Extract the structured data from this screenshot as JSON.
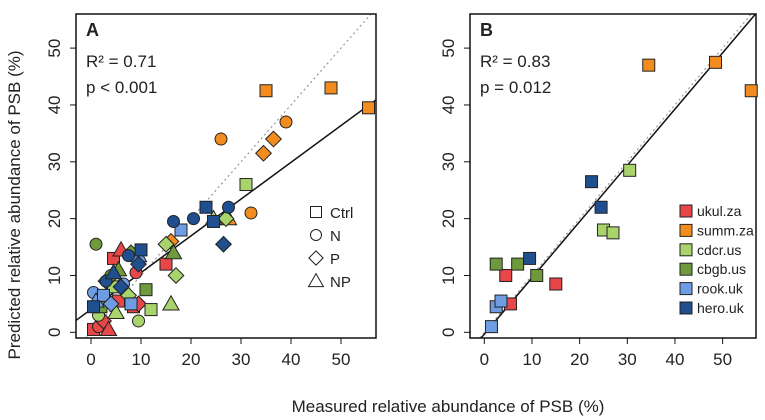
{
  "figure": {
    "xlabel": "Measured relative abundance of PSB (%)",
    "ylabel": "Predicted relative abundance of PSB (%)"
  },
  "colors": {
    "ukul.za": "#e8474a",
    "summ.za": "#f28c1e",
    "cdcr.us": "#a9d46b",
    "cbgb.us": "#6f9a3c",
    "rook.uk": "#6e9de3",
    "hero.uk": "#1f4f8f"
  },
  "chart_data": [
    {
      "type": "scatter",
      "panel": "A",
      "label": "A",
      "r2": "R² = 0.71",
      "p": "p < 0.001",
      "xlim": [
        -3,
        57
      ],
      "ylim": [
        -1,
        56
      ],
      "xticks": [
        0,
        10,
        20,
        30,
        40,
        50
      ],
      "yticks": [
        0,
        10,
        20,
        30,
        40,
        50
      ],
      "xtick_labels": [
        "0",
        "10",
        "20",
        "30",
        "40",
        "50"
      ],
      "ytick_labels": [
        "0",
        "10",
        "20",
        "30",
        "40",
        "50"
      ],
      "fit_line": [
        [
          -3,
          2.1
        ],
        [
          57,
          40.9
        ]
      ],
      "identity_line": "dotted",
      "shape_legend": {
        "placement": "right-middle",
        "items": [
          {
            "shape": "square",
            "label": "Ctrl"
          },
          {
            "shape": "circle",
            "label": "N"
          },
          {
            "shape": "diamond",
            "label": "P"
          },
          {
            "shape": "triangle",
            "label": "NP"
          }
        ]
      },
      "points": [
        {
          "x": 0.5,
          "y": 0.5,
          "shape": "square",
          "site": "ukul.za"
        },
        {
          "x": 1.5,
          "y": 1.0,
          "shape": "circle",
          "site": "ukul.za"
        },
        {
          "x": 2.5,
          "y": 2.0,
          "shape": "diamond",
          "site": "ukul.za"
        },
        {
          "x": 3.5,
          "y": 0.5,
          "shape": "triangle",
          "site": "ukul.za"
        },
        {
          "x": 4.5,
          "y": 13.0,
          "shape": "square",
          "site": "ukul.za"
        },
        {
          "x": 5.5,
          "y": 5.5,
          "shape": "square",
          "site": "ukul.za"
        },
        {
          "x": 6.0,
          "y": 14.5,
          "shape": "triangle",
          "site": "ukul.za"
        },
        {
          "x": 8.5,
          "y": 4.5,
          "shape": "square",
          "site": "ukul.za"
        },
        {
          "x": 9.0,
          "y": 10.5,
          "shape": "circle",
          "site": "ukul.za"
        },
        {
          "x": 9.5,
          "y": 5.0,
          "shape": "diamond",
          "site": "ukul.za"
        },
        {
          "x": 15.0,
          "y": 12.0,
          "shape": "square",
          "site": "ukul.za"
        },
        {
          "x": 26.0,
          "y": 34.0,
          "shape": "circle",
          "site": "summ.za"
        },
        {
          "x": 27.5,
          "y": 20.0,
          "shape": "triangle",
          "site": "summ.za"
        },
        {
          "x": 32.0,
          "y": 21.0,
          "shape": "circle",
          "site": "summ.za"
        },
        {
          "x": 34.5,
          "y": 31.5,
          "shape": "diamond",
          "site": "summ.za"
        },
        {
          "x": 35.0,
          "y": 42.5,
          "shape": "square",
          "site": "summ.za"
        },
        {
          "x": 36.5,
          "y": 34.0,
          "shape": "diamond",
          "site": "summ.za"
        },
        {
          "x": 39.0,
          "y": 37.0,
          "shape": "circle",
          "site": "summ.za"
        },
        {
          "x": 48.0,
          "y": 43.0,
          "shape": "square",
          "site": "summ.za"
        },
        {
          "x": 55.5,
          "y": 39.5,
          "shape": "square",
          "site": "summ.za"
        },
        {
          "x": 16.0,
          "y": 16.0,
          "shape": "diamond",
          "site": "summ.za"
        },
        {
          "x": 1.5,
          "y": 3.0,
          "shape": "circle",
          "site": "cdcr.us"
        },
        {
          "x": 3.0,
          "y": 6.0,
          "shape": "triangle",
          "site": "cdcr.us"
        },
        {
          "x": 4.5,
          "y": 8.0,
          "shape": "square",
          "site": "cdcr.us"
        },
        {
          "x": 5.0,
          "y": 3.5,
          "shape": "triangle",
          "site": "cdcr.us"
        },
        {
          "x": 7.5,
          "y": 6.5,
          "shape": "diamond",
          "site": "cdcr.us"
        },
        {
          "x": 9.5,
          "y": 2.0,
          "shape": "circle",
          "site": "cdcr.us"
        },
        {
          "x": 12.0,
          "y": 4.0,
          "shape": "square",
          "site": "cdcr.us"
        },
        {
          "x": 15.0,
          "y": 15.5,
          "shape": "diamond",
          "site": "cdcr.us"
        },
        {
          "x": 16.0,
          "y": 5.0,
          "shape": "triangle",
          "site": "cdcr.us"
        },
        {
          "x": 17.0,
          "y": 10.0,
          "shape": "diamond",
          "site": "cdcr.us"
        },
        {
          "x": 24.5,
          "y": 20.0,
          "shape": "triangle",
          "site": "cdcr.us"
        },
        {
          "x": 27.0,
          "y": 20.0,
          "shape": "diamond",
          "site": "cdcr.us"
        },
        {
          "x": 31.0,
          "y": 26.0,
          "shape": "square",
          "site": "cdcr.us"
        },
        {
          "x": 1.0,
          "y": 15.5,
          "shape": "circle",
          "site": "cbgb.us"
        },
        {
          "x": 2.0,
          "y": 4.5,
          "shape": "square",
          "site": "cbgb.us"
        },
        {
          "x": 3.0,
          "y": 9.0,
          "shape": "diamond",
          "site": "cbgb.us"
        },
        {
          "x": 4.0,
          "y": 10.0,
          "shape": "circle",
          "site": "cbgb.us"
        },
        {
          "x": 5.5,
          "y": 11.0,
          "shape": "triangle",
          "site": "cbgb.us"
        },
        {
          "x": 8.0,
          "y": 14.0,
          "shape": "diamond",
          "site": "cbgb.us"
        },
        {
          "x": 11.0,
          "y": 7.5,
          "shape": "square",
          "site": "cbgb.us"
        },
        {
          "x": 16.5,
          "y": 14.0,
          "shape": "triangle",
          "site": "cbgb.us"
        },
        {
          "x": 0.5,
          "y": 7.0,
          "shape": "circle",
          "site": "rook.uk"
        },
        {
          "x": 1.0,
          "y": 5.5,
          "shape": "triangle",
          "site": "rook.uk"
        },
        {
          "x": 2.5,
          "y": 6.5,
          "shape": "square",
          "site": "rook.uk"
        },
        {
          "x": 4.0,
          "y": 5.0,
          "shape": "diamond",
          "site": "rook.uk"
        },
        {
          "x": 6.5,
          "y": 8.5,
          "shape": "circle",
          "site": "rook.uk"
        },
        {
          "x": 8.0,
          "y": 5.0,
          "shape": "square",
          "site": "rook.uk"
        },
        {
          "x": 9.5,
          "y": 13.5,
          "shape": "triangle",
          "site": "rook.uk"
        },
        {
          "x": 18.0,
          "y": 18.0,
          "shape": "square",
          "site": "rook.uk"
        },
        {
          "x": 0.5,
          "y": 4.5,
          "shape": "square",
          "site": "hero.uk"
        },
        {
          "x": 3.0,
          "y": 9.0,
          "shape": "circle",
          "site": "hero.uk"
        },
        {
          "x": 4.5,
          "y": 10.5,
          "shape": "triangle",
          "site": "hero.uk"
        },
        {
          "x": 6.0,
          "y": 8.0,
          "shape": "diamond",
          "site": "hero.uk"
        },
        {
          "x": 7.5,
          "y": 13.5,
          "shape": "circle",
          "site": "hero.uk"
        },
        {
          "x": 9.5,
          "y": 12.0,
          "shape": "diamond",
          "site": "hero.uk"
        },
        {
          "x": 10.0,
          "y": 14.5,
          "shape": "square",
          "site": "hero.uk"
        },
        {
          "x": 16.5,
          "y": 19.5,
          "shape": "circle",
          "site": "hero.uk"
        },
        {
          "x": 20.5,
          "y": 20.0,
          "shape": "circle",
          "site": "hero.uk"
        },
        {
          "x": 23.0,
          "y": 22.0,
          "shape": "square",
          "site": "hero.uk"
        },
        {
          "x": 24.5,
          "y": 19.5,
          "shape": "square",
          "site": "hero.uk"
        },
        {
          "x": 26.5,
          "y": 15.5,
          "shape": "diamond",
          "site": "hero.uk"
        },
        {
          "x": 27.5,
          "y": 22.0,
          "shape": "circle",
          "site": "hero.uk"
        }
      ]
    },
    {
      "type": "scatter",
      "panel": "B",
      "label": "B",
      "r2": "R² = 0.83",
      "p": "p = 0.012",
      "xlim": [
        -3,
        57
      ],
      "ylim": [
        -1,
        56
      ],
      "xticks": [
        0,
        10,
        20,
        30,
        40,
        50
      ],
      "yticks": [
        0,
        10,
        20,
        30,
        40,
        50
      ],
      "xtick_labels": [
        "0",
        "10",
        "20",
        "30",
        "40",
        "50"
      ],
      "ytick_labels": [
        "0",
        "10",
        "20",
        "30",
        "40",
        "50"
      ],
      "fit_line": [
        [
          -3,
          -3.3
        ],
        [
          57,
          56.1
        ]
      ],
      "identity_line": "dotted",
      "site_legend": {
        "placement": "right-middle",
        "items": [
          "ukul.za",
          "summ.za",
          "cdcr.us",
          "cbgb.us",
          "rook.uk",
          "hero.uk"
        ]
      },
      "points": [
        {
          "x": 4.5,
          "y": 10.0,
          "site": "ukul.za"
        },
        {
          "x": 5.5,
          "y": 5.0,
          "site": "ukul.za"
        },
        {
          "x": 15.0,
          "y": 8.5,
          "site": "ukul.za"
        },
        {
          "x": 34.5,
          "y": 47.0,
          "site": "summ.za"
        },
        {
          "x": 48.5,
          "y": 47.5,
          "site": "summ.za"
        },
        {
          "x": 56.0,
          "y": 42.5,
          "site": "summ.za"
        },
        {
          "x": 25.0,
          "y": 18.0,
          "site": "cdcr.us"
        },
        {
          "x": 27.0,
          "y": 17.5,
          "site": "cdcr.us"
        },
        {
          "x": 30.5,
          "y": 28.5,
          "site": "cdcr.us"
        },
        {
          "x": 2.5,
          "y": 12.0,
          "site": "cbgb.us"
        },
        {
          "x": 7.0,
          "y": 12.0,
          "site": "cbgb.us"
        },
        {
          "x": 11.0,
          "y": 10.0,
          "site": "cbgb.us"
        },
        {
          "x": 1.5,
          "y": 1.0,
          "site": "rook.uk"
        },
        {
          "x": 2.5,
          "y": 4.5,
          "site": "rook.uk"
        },
        {
          "x": 3.5,
          "y": 5.5,
          "site": "rook.uk"
        },
        {
          "x": 9.5,
          "y": 13.0,
          "site": "hero.uk"
        },
        {
          "x": 22.5,
          "y": 26.5,
          "site": "hero.uk"
        },
        {
          "x": 24.5,
          "y": 22.0,
          "site": "hero.uk"
        }
      ]
    }
  ]
}
